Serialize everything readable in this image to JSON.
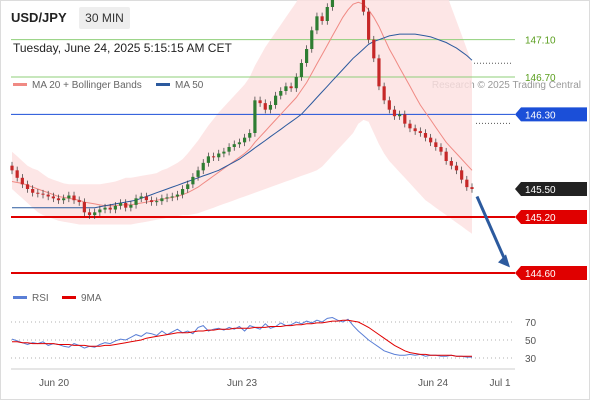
{
  "header": {
    "pair": "USD/JPY",
    "timeframe": "30 MIN",
    "timestamp": "Tuesday, June 24, 2025 5:15:15 AM CET"
  },
  "legend": {
    "ma20_label": "MA 20 + Bollinger Bands",
    "ma50_label": "MA 50",
    "credit": "Research © 2025 Trading Central",
    "rsi_label": "RSI",
    "ma9_label": "9MA"
  },
  "colors": {
    "ma20": "#f08a84",
    "ma50": "#2c5a9e",
    "band": "#fde0e0",
    "up": "#2e7d32",
    "down": "#c62828",
    "red_level": "#e00000",
    "blue_level": "#1b4fd8",
    "green_level": "#8fcf7a"
  },
  "chart_data": [
    {
      "type": "candlestick",
      "title": "USD/JPY 30 MIN",
      "x_ticks": [
        "Jun 20",
        "Jun 23",
        "Jun 24",
        "Jul 1"
      ],
      "ylim": [
        144.3,
        147.6
      ],
      "levels": [
        {
          "value": 147.1,
          "label": "147.10",
          "style": "resistance"
        },
        {
          "value": 146.7,
          "label": "146.70",
          "style": "resistance"
        },
        {
          "value": 146.3,
          "label": "146.30",
          "style": "pivot"
        },
        {
          "value": 145.5,
          "label": "145.50",
          "style": "last"
        },
        {
          "value": 145.2,
          "label": "145.20",
          "style": "support"
        },
        {
          "value": 144.6,
          "label": "144.60",
          "style": "target"
        }
      ],
      "close": [
        145.7,
        145.62,
        145.55,
        145.5,
        145.46,
        145.45,
        145.44,
        145.42,
        145.4,
        145.38,
        145.4,
        145.43,
        145.38,
        145.36,
        145.25,
        145.22,
        145.25,
        145.28,
        145.3,
        145.28,
        145.32,
        145.35,
        145.3,
        145.33,
        145.4,
        145.42,
        145.38,
        145.36,
        145.37,
        145.4,
        145.41,
        145.42,
        145.44,
        145.5,
        145.55,
        145.63,
        145.7,
        145.78,
        145.85,
        145.84,
        145.88,
        145.9,
        145.95,
        145.98,
        146.0,
        146.05,
        146.1,
        146.45,
        146.42,
        146.35,
        146.4,
        146.5,
        146.55,
        146.6,
        146.58,
        146.7,
        146.85,
        147.0,
        147.2,
        147.35,
        147.3,
        147.45,
        147.6,
        147.75,
        147.9,
        148.0,
        147.85,
        147.7,
        147.4,
        147.1,
        146.9,
        146.6,
        146.45,
        146.35,
        146.28,
        146.3,
        146.2,
        146.15,
        146.12,
        146.1,
        146.05,
        146.0,
        145.95,
        145.9,
        145.8,
        145.75,
        145.7,
        145.6,
        145.52,
        145.5
      ],
      "ma20": [
        145.58,
        145.57,
        145.56,
        145.54,
        145.52,
        145.5,
        145.48,
        145.46,
        145.44,
        145.42,
        145.41,
        145.4,
        145.39,
        145.38,
        145.36,
        145.35,
        145.34,
        145.33,
        145.32,
        145.32,
        145.32,
        145.33,
        145.33,
        145.33,
        145.34,
        145.35,
        145.36,
        145.37,
        145.38,
        145.39,
        145.4,
        145.41,
        145.42,
        145.44,
        145.46,
        145.49,
        145.52,
        145.56,
        145.6,
        145.64,
        145.68,
        145.72,
        145.76,
        145.8,
        145.84,
        145.88,
        145.93,
        146.0,
        146.06,
        146.12,
        146.18,
        146.24,
        146.3,
        146.36,
        146.42,
        146.48,
        146.56,
        146.64,
        146.74,
        146.84,
        146.94,
        147.04,
        147.14,
        147.24,
        147.34,
        147.42,
        147.48,
        147.5,
        147.48,
        147.42,
        147.34,
        147.24,
        147.12,
        147.0,
        146.9,
        146.8,
        146.7,
        146.6,
        146.5,
        146.4,
        146.32,
        146.24,
        146.16,
        146.08,
        146.0,
        145.94,
        145.88,
        145.82,
        145.76,
        145.7
      ],
      "ma50": [
        145.3,
        145.3,
        145.3,
        145.3,
        145.3,
        145.3,
        145.3,
        145.3,
        145.3,
        145.3,
        145.3,
        145.3,
        145.3,
        145.3,
        145.3,
        145.3,
        145.3,
        145.31,
        145.32,
        145.33,
        145.34,
        145.35,
        145.36,
        145.37,
        145.38,
        145.4,
        145.42,
        145.44,
        145.46,
        145.48,
        145.5,
        145.52,
        145.54,
        145.56,
        145.58,
        145.6,
        145.62,
        145.64,
        145.66,
        145.68,
        145.7,
        145.73,
        145.76,
        145.79,
        145.82,
        145.86,
        145.9,
        145.94,
        145.98,
        146.02,
        146.06,
        146.1,
        146.14,
        146.18,
        146.22,
        146.26,
        146.3,
        146.36,
        146.42,
        146.48,
        146.54,
        146.6,
        146.66,
        146.72,
        146.78,
        146.84,
        146.9,
        146.95,
        147.0,
        147.05,
        147.08,
        147.1,
        147.12,
        147.14,
        147.15,
        147.16,
        147.16,
        147.16,
        147.16,
        147.15,
        147.14,
        147.13,
        147.11,
        147.09,
        147.07,
        147.04,
        147.01,
        146.97,
        146.93,
        146.88
      ],
      "bb_upper": [
        145.9,
        145.85,
        145.8,
        145.75,
        145.72,
        145.7,
        145.66,
        145.62,
        145.6,
        145.58,
        145.56,
        145.55,
        145.55,
        145.55,
        145.55,
        145.55,
        145.55,
        145.55,
        145.56,
        145.57,
        145.58,
        145.6,
        145.62,
        145.62,
        145.63,
        145.64,
        145.65,
        145.66,
        145.67,
        145.7,
        145.72,
        145.75,
        145.78,
        145.82,
        145.88,
        145.95,
        146.02,
        146.1,
        146.18,
        146.25,
        146.32,
        146.38,
        146.44,
        146.5,
        146.56,
        146.62,
        146.7,
        146.82,
        146.92,
        147.02,
        147.1,
        147.18,
        147.26,
        147.34,
        147.42,
        147.5,
        147.62,
        147.74,
        147.88,
        148.0,
        148.1,
        148.2,
        148.3,
        148.4,
        148.5,
        148.58,
        148.62,
        148.65,
        148.66,
        148.66,
        148.66,
        148.66,
        148.64,
        148.6,
        148.54,
        148.48,
        148.4,
        148.3,
        148.2,
        148.1,
        148.0,
        147.9,
        147.8,
        147.7,
        147.6,
        147.45,
        147.3,
        147.15,
        147.0,
        146.85
      ],
      "bb_lower": [
        145.5,
        145.45,
        145.4,
        145.35,
        145.3,
        145.25,
        145.22,
        145.2,
        145.18,
        145.16,
        145.15,
        145.14,
        145.13,
        145.12,
        145.12,
        145.12,
        145.12,
        145.12,
        145.12,
        145.12,
        145.12,
        145.12,
        145.12,
        145.12,
        145.13,
        145.14,
        145.15,
        145.16,
        145.17,
        145.18,
        145.19,
        145.2,
        145.21,
        145.22,
        145.22,
        145.23,
        145.24,
        145.26,
        145.28,
        145.3,
        145.32,
        145.34,
        145.36,
        145.38,
        145.4,
        145.42,
        145.44,
        145.46,
        145.48,
        145.5,
        145.52,
        145.54,
        145.56,
        145.58,
        145.6,
        145.62,
        145.64,
        145.66,
        145.68,
        145.7,
        145.74,
        145.8,
        145.86,
        145.92,
        145.98,
        146.04,
        146.1,
        146.2,
        146.24,
        146.22,
        146.1,
        145.98,
        145.88,
        145.8,
        145.74,
        145.68,
        145.62,
        145.56,
        145.5,
        145.44,
        145.38,
        145.34,
        145.3,
        145.26,
        145.22,
        145.18,
        145.14,
        145.1,
        145.06,
        145.02
      ]
    },
    {
      "type": "line",
      "title": "RSI",
      "ylim": [
        20,
        80
      ],
      "y_ticks": [
        70,
        50,
        30
      ],
      "series": [
        {
          "name": "RSI",
          "values": [
            51,
            49,
            47,
            45,
            47,
            46,
            48,
            44,
            46,
            45,
            43,
            42,
            46,
            44,
            41,
            43,
            42,
            45,
            47,
            46,
            49,
            51,
            50,
            53,
            56,
            54,
            58,
            57,
            55,
            60,
            56,
            59,
            62,
            58,
            60,
            57,
            64,
            66,
            60,
            62,
            63,
            61,
            64,
            62,
            65,
            60,
            66,
            64,
            62,
            68,
            63,
            65,
            69,
            66,
            67,
            70,
            68,
            71,
            69,
            72,
            70,
            74,
            75,
            72,
            70,
            73,
            66,
            60,
            55,
            50,
            46,
            42,
            38,
            36,
            34,
            33,
            33,
            34,
            33,
            34,
            32,
            33,
            33,
            32,
            32,
            33,
            32,
            32,
            31,
            31
          ]
        },
        {
          "name": "9MA",
          "values": [
            48,
            48,
            47,
            47,
            46,
            46,
            46,
            46,
            46,
            45,
            45,
            45,
            44,
            44,
            44,
            43,
            43,
            43,
            44,
            44,
            45,
            46,
            47,
            48,
            49,
            50,
            52,
            53,
            54,
            55,
            56,
            57,
            58,
            58,
            58,
            59,
            60,
            60,
            61,
            61,
            62,
            62,
            62,
            63,
            63,
            63,
            63,
            64,
            64,
            64,
            65,
            65,
            65,
            66,
            66,
            67,
            67,
            68,
            68,
            69,
            69,
            70,
            71,
            71,
            72,
            72,
            71,
            70,
            67,
            64,
            60,
            56,
            52,
            48,
            44,
            41,
            38,
            36,
            35,
            34,
            34,
            33,
            33,
            33,
            33,
            33,
            32,
            32,
            32,
            32
          ]
        }
      ]
    }
  ]
}
